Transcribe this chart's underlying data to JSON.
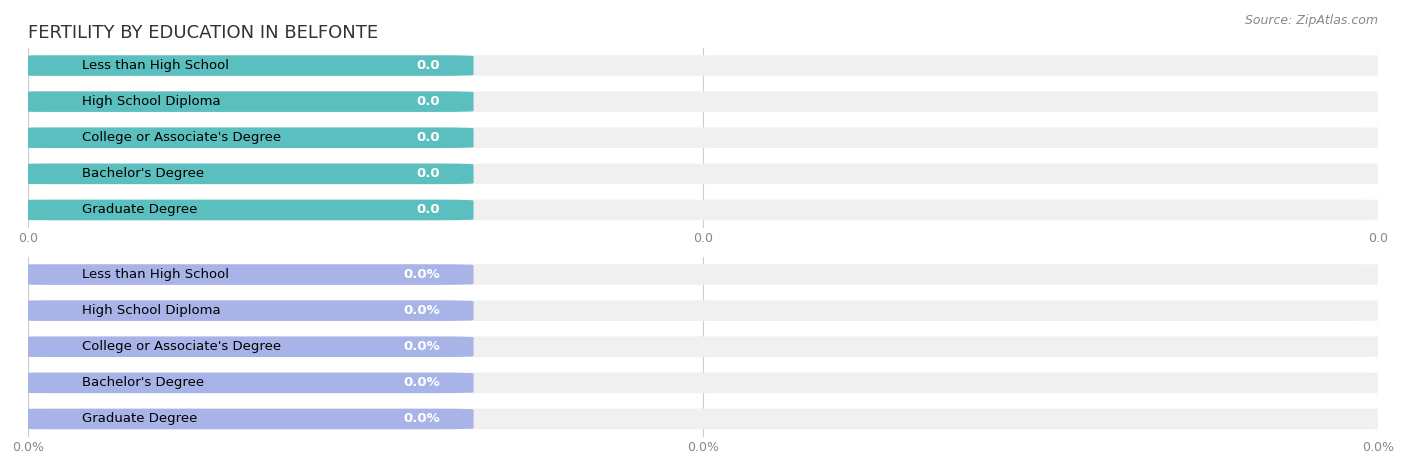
{
  "title": "FERTILITY BY EDUCATION IN BELFONTE",
  "source": "Source: ZipAtlas.com",
  "categories": [
    "Less than High School",
    "High School Diploma",
    "College or Associate's Degree",
    "Bachelor's Degree",
    "Graduate Degree"
  ],
  "values_top": [
    0.0,
    0.0,
    0.0,
    0.0,
    0.0
  ],
  "values_bottom": [
    0.0,
    0.0,
    0.0,
    0.0,
    0.0
  ],
  "labels_top": [
    "0.0",
    "0.0",
    "0.0",
    "0.0",
    "0.0"
  ],
  "labels_bottom": [
    "0.0%",
    "0.0%",
    "0.0%",
    "0.0%",
    "0.0%"
  ],
  "bar_color_top": "#5BBFBF",
  "bar_color_bottom": "#A8B4E8",
  "bg_bar_color": "#F0F0F0",
  "bar_label_color_top": "#FFFFFF",
  "bar_label_color_bottom": "#FFFFFF",
  "title_color": "#333333",
  "source_color": "#888888",
  "tick_label_color": "#888888",
  "xlim": [
    0,
    1.0
  ],
  "bar_height": 0.55,
  "background_color": "#FFFFFF",
  "title_fontsize": 13,
  "label_fontsize": 9.5,
  "value_fontsize": 9.5,
  "source_fontsize": 9,
  "tick_fontsize": 9
}
